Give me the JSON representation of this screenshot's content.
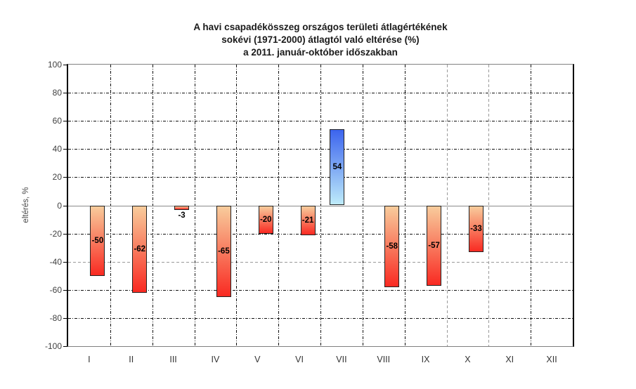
{
  "title": {
    "line1": "A havi csapadékösszeg országos területi átlagértékének",
    "line2": "sokévi (1971-2000) átlagtól való eltérése (%)",
    "line3": "a 2011. január-október időszakban"
  },
  "chart_data": {
    "type": "bar",
    "title": "A havi csapadékösszeg országos területi átlagértékének sokévi (1971-2000) átlagtól való eltérése (%) a 2011. január-október időszakban",
    "xlabel": "",
    "ylabel": "eltérés, %",
    "categories": [
      "I",
      "II",
      "III",
      "IV",
      "V",
      "VI",
      "VII",
      "VIII",
      "IX",
      "X",
      "XI",
      "XII"
    ],
    "values": [
      -50,
      -62,
      -3,
      -65,
      -20,
      -21,
      54,
      -58,
      -57,
      -33,
      null,
      null
    ],
    "bar_labels": [
      "-50",
      "-62",
      "-3",
      "-65",
      "-20",
      "-21",
      "54",
      "-58",
      "-57",
      "-33",
      "",
      ""
    ],
    "ylim": [
      -100,
      100
    ],
    "ytick_step": 20,
    "yticks": [
      100,
      80,
      60,
      40,
      20,
      0,
      -20,
      -40,
      -60,
      -80,
      -100
    ],
    "grid": "dashed horizontal and vertical gridlines, zero line solid",
    "legend": "none",
    "colors": {
      "negative_bar_top": "#F8CC9C",
      "negative_bar_bottom": "#F92A22",
      "positive_bar_top": "#3C64EE",
      "positive_bar_bottom": "#BEEBFA",
      "bar_border": "#222222",
      "zero_line": "#8a8a8a",
      "grid_dark": "#111111",
      "grid_gray": "#999999",
      "axis_dark": "#000000",
      "frame_gray": "#808080",
      "text_dark": "#1a1a1a",
      "text_gray": "#4a4a4a"
    }
  }
}
